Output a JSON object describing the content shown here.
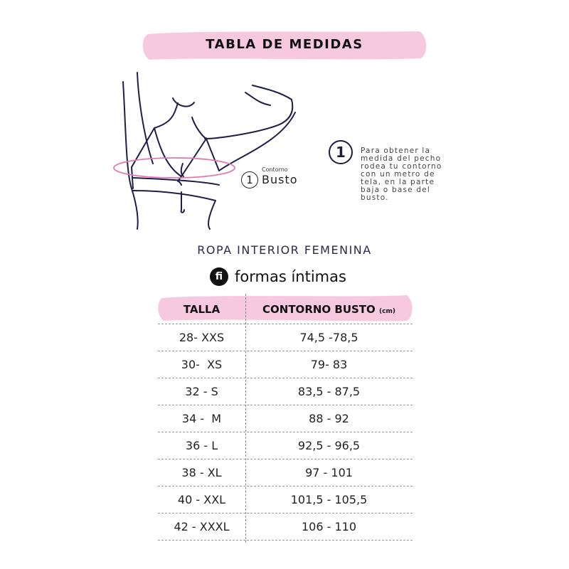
{
  "title": "TABLA DE MEDIDAS",
  "illustration": {
    "label_number": "1",
    "label_small": "Contorno",
    "label_big": "Busto"
  },
  "instruction": {
    "number": "1",
    "text": "Para obtener la medida del pecho rodea tu contorno con un metro de tela, en la parte baja o base del busto."
  },
  "subtitle": "ROPA INTERIOR FEMENINA",
  "brand": {
    "mark": "fi",
    "name": "formas íntimas"
  },
  "table": {
    "headers": {
      "size": "TALLA",
      "bust": "CONTORNO BUSTO",
      "unit": "(cm)"
    },
    "rows": [
      {
        "size": "28- XXS",
        "bust": "74,5 -78,5"
      },
      {
        "size": "30-  XS",
        "bust": "79- 83"
      },
      {
        "size": "32 - S",
        "bust": "83,5 - 87,5"
      },
      {
        "size": "34 -  M",
        "bust": "88 - 92"
      },
      {
        "size": "36 - L",
        "bust": "92,5 - 96,5"
      },
      {
        "size": "38 - XL",
        "bust": "97 - 101"
      },
      {
        "size": "40 - XXL",
        "bust": "101,5 - 105,5"
      },
      {
        "size": "42 - XXXL",
        "bust": "106 - 110"
      }
    ]
  },
  "colors": {
    "pink": "#f6c9df",
    "line": "#1e1e4a",
    "measure": "#e07ab0"
  }
}
